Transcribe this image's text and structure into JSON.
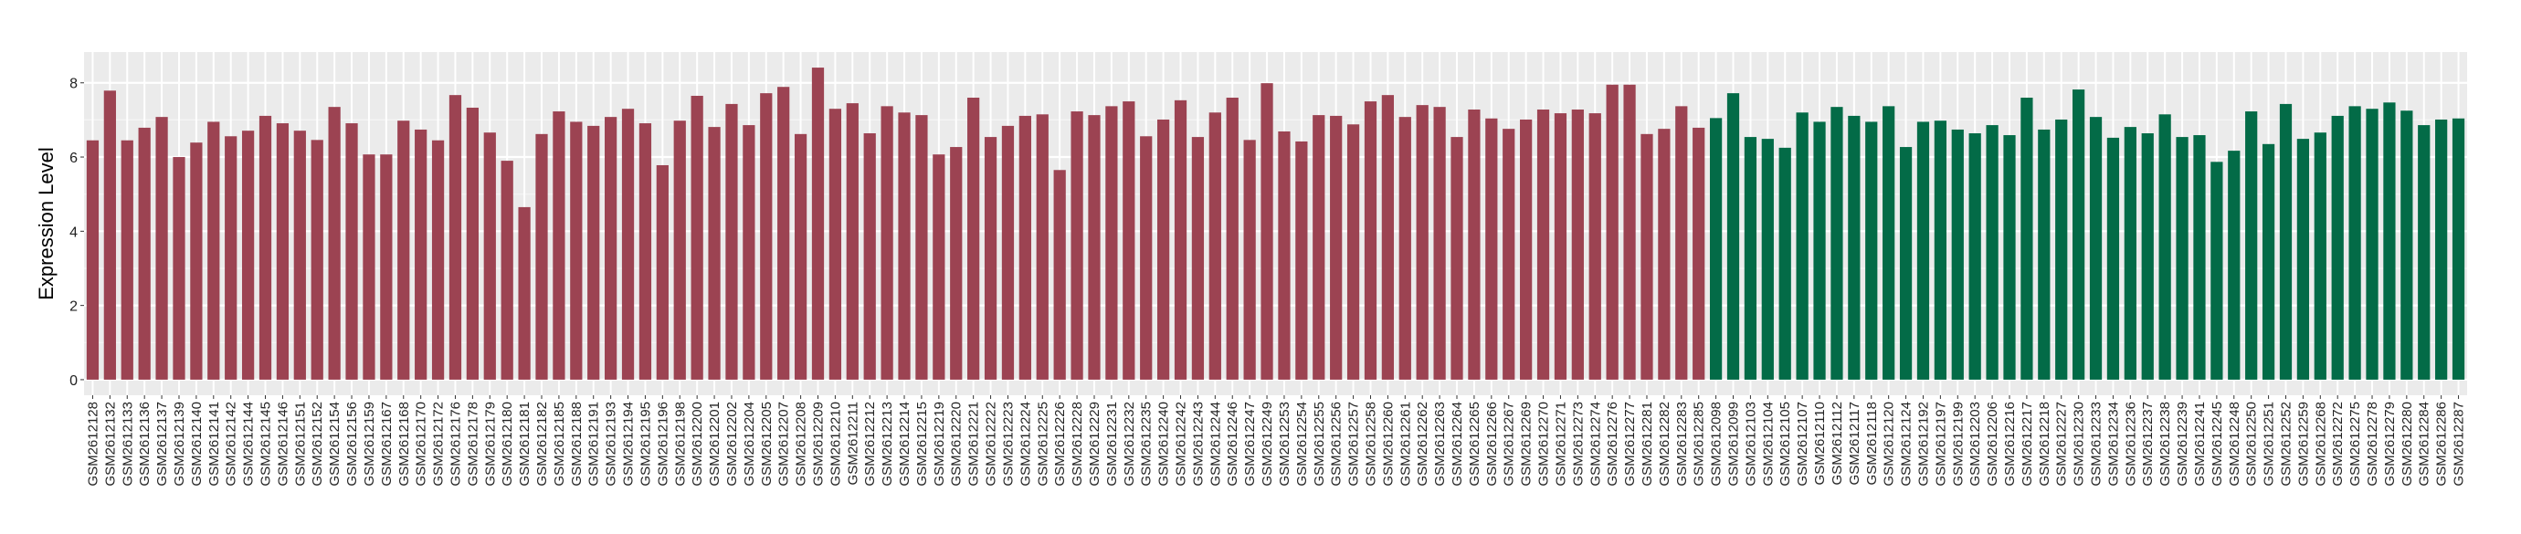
{
  "chart_data": {
    "type": "bar",
    "title": "",
    "xlabel": "",
    "ylabel": "Expression Level",
    "ylim": [
      -0.42,
      8.83
    ],
    "yticks": [
      0,
      2,
      4,
      6,
      8
    ],
    "grid": true,
    "legend": "none",
    "colors": {
      "group1": "#9C4352",
      "group2": "#036B47",
      "panel": "#EBEBEB",
      "grid": "#FFFFFF"
    },
    "series": [
      {
        "color": "#9C4352",
        "categories": [
          "GSM2612128",
          "GSM2612132",
          "GSM2612133",
          "GSM2612136",
          "GSM2612137",
          "GSM2612139",
          "GSM2612140",
          "GSM2612141",
          "GSM2612142",
          "GSM2612144",
          "GSM2612145",
          "GSM2612146",
          "GSM2612151",
          "GSM2612152",
          "GSM2612154",
          "GSM2612156",
          "GSM2612159",
          "GSM2612167",
          "GSM2612168",
          "GSM2612170",
          "GSM2612172",
          "GSM2612176",
          "GSM2612178",
          "GSM2612179",
          "GSM2612180",
          "GSM2612181",
          "GSM2612182",
          "GSM2612185",
          "GSM2612188",
          "GSM2612191",
          "GSM2612193",
          "GSM2612194",
          "GSM2612195",
          "GSM2612196",
          "GSM2612198",
          "GSM2612200",
          "GSM2612201",
          "GSM2612202",
          "GSM2612204",
          "GSM2612205",
          "GSM2612207",
          "GSM2612208",
          "GSM2612209",
          "GSM2612210",
          "GSM2612211",
          "GSM2612212",
          "GSM2612213",
          "GSM2612214",
          "GSM2612215",
          "GSM2612219",
          "GSM2612220",
          "GSM2612221",
          "GSM2612222",
          "GSM2612223",
          "GSM2612224",
          "GSM2612225",
          "GSM2612226",
          "GSM2612228",
          "GSM2612229",
          "GSM2612231",
          "GSM2612232",
          "GSM2612235",
          "GSM2612240",
          "GSM2612242",
          "GSM2612243",
          "GSM2612244",
          "GSM2612246",
          "GSM2612247",
          "GSM2612249",
          "GSM2612253",
          "GSM2612254",
          "GSM2612255",
          "GSM2612256",
          "GSM2612257",
          "GSM2612258",
          "GSM2612260",
          "GSM2612261",
          "GSM2612262",
          "GSM2612263",
          "GSM2612264",
          "GSM2612265",
          "GSM2612266",
          "GSM2612267",
          "GSM2612269",
          "GSM2612270",
          "GSM2612271",
          "GSM2612273",
          "GSM2612274",
          "GSM2612276",
          "GSM2612277",
          "GSM2612281",
          "GSM2612282",
          "GSM2612283",
          "GSM2612285"
        ],
        "values": [
          6.45,
          7.79,
          6.45,
          6.79,
          7.08,
          6.0,
          6.39,
          6.95,
          6.56,
          6.71,
          7.11,
          6.91,
          6.71,
          6.46,
          7.35,
          6.91,
          6.07,
          6.07,
          6.98,
          6.74,
          6.45,
          7.67,
          7.33,
          6.66,
          5.9,
          4.65,
          6.62,
          7.23,
          6.95,
          6.84,
          7.08,
          7.3,
          6.91,
          5.78,
          6.98,
          7.65,
          6.81,
          7.43,
          6.86,
          7.72,
          7.89,
          6.62,
          8.41,
          7.3,
          7.45,
          6.64,
          7.37,
          7.2,
          7.13,
          6.07,
          6.27,
          7.6,
          6.54,
          6.84,
          7.11,
          7.15,
          5.65,
          7.23,
          7.13,
          7.37,
          7.5,
          6.56,
          7.01,
          7.53,
          6.54,
          7.2,
          7.6,
          6.46,
          7.99,
          6.69,
          6.42,
          7.13,
          7.11,
          6.88,
          7.5,
          7.67,
          7.08,
          7.4,
          7.35,
          6.54,
          7.28,
          7.04,
          6.76,
          7.01,
          7.28,
          7.18,
          7.28,
          7.18,
          7.95,
          7.95,
          6.62,
          6.76,
          7.37,
          6.79
        ]
      },
      {
        "color": "#036B47",
        "categories": [
          "GSM2612098",
          "GSM2612099",
          "GSM2612103",
          "GSM2612104",
          "GSM2612105",
          "GSM2612107",
          "GSM2612110",
          "GSM2612112",
          "GSM2612117",
          "GSM2612118",
          "GSM2612120",
          "GSM2612124",
          "GSM2612192",
          "GSM2612197",
          "GSM2612199",
          "GSM2612203",
          "GSM2612206",
          "GSM2612216",
          "GSM2612217",
          "GSM2612218",
          "GSM2612227",
          "GSM2612230",
          "GSM2612233",
          "GSM2612234",
          "GSM2612236",
          "GSM2612237",
          "GSM2612238",
          "GSM2612239",
          "GSM2612241",
          "GSM2612245",
          "GSM2612248",
          "GSM2612250",
          "GSM2612251",
          "GSM2612252",
          "GSM2612259",
          "GSM2612268",
          "GSM2612272",
          "GSM2612275",
          "GSM2612278",
          "GSM2612279",
          "GSM2612280",
          "GSM2612284",
          "GSM2612286",
          "GSM2612287"
        ],
        "values": [
          7.05,
          7.72,
          6.54,
          6.49,
          6.25,
          7.2,
          6.95,
          7.35,
          7.11,
          6.95,
          7.37,
          6.27,
          6.95,
          6.98,
          6.74,
          6.64,
          6.86,
          6.59,
          7.6,
          6.74,
          7.01,
          7.82,
          7.08,
          6.52,
          6.81,
          6.64,
          7.15,
          6.54,
          6.59,
          5.87,
          6.17,
          7.23,
          6.35,
          7.43,
          6.49,
          6.66,
          7.11,
          7.37,
          7.3,
          7.47,
          7.25,
          6.86,
          7.01,
          7.04
        ]
      }
    ]
  }
}
